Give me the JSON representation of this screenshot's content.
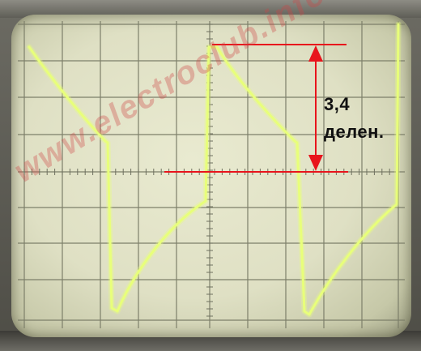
{
  "photo": {
    "subject": "oscilloscope-screen",
    "trace_color": "#e8ff7a",
    "grid_color": "#7d7f6a",
    "annotation_color": "#e8141c",
    "screen_color": "#e4e5ca"
  },
  "annotation": {
    "value": "3,4",
    "unit": "делен."
  },
  "watermark": {
    "text": "www.electroclub.info"
  }
}
